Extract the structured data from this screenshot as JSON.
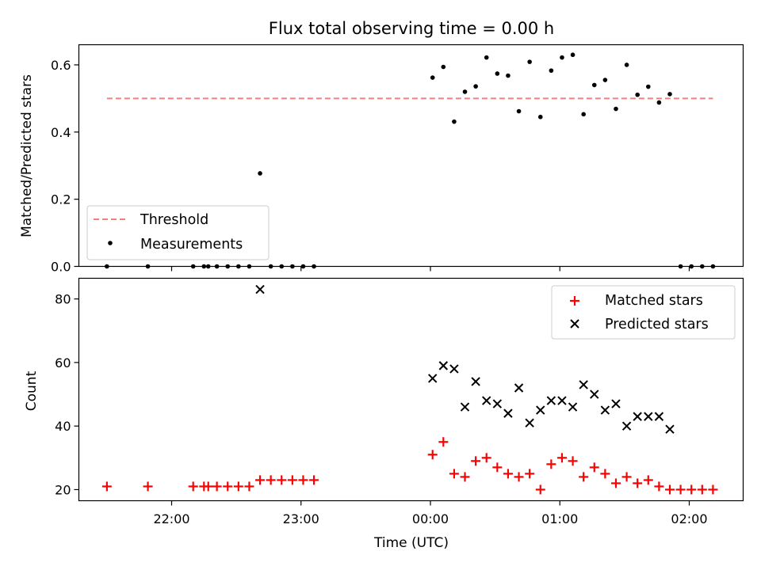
{
  "chart_data": [
    {
      "type": "scatter",
      "title": "Flux total observing time = 0.00 h",
      "xlabel": "",
      "ylabel": "Matched/Predicted stars",
      "ylim": [
        0,
        0.66
      ],
      "yticks": [
        0.0,
        0.2,
        0.4,
        0.6
      ],
      "ytick_labels": [
        "0.0",
        "0.2",
        "0.4",
        "0.6"
      ],
      "legend": {
        "placement": "lower-left",
        "entries": [
          "Threshold",
          "Measurements"
        ]
      },
      "threshold": {
        "name": "Threshold",
        "value": 0.5,
        "x_start": "21:30",
        "x_end": "02:11",
        "color": "#f08080",
        "style": "dashed"
      },
      "series": [
        {
          "name": "Measurements",
          "marker": "dot",
          "color": "#000000",
          "x": [
            "21:30",
            "21:49",
            "22:10",
            "22:15",
            "22:17",
            "22:21",
            "22:26",
            "22:31",
            "22:36",
            "22:41",
            "22:46",
            "22:51",
            "22:56",
            "23:01",
            "23:06",
            "00:01",
            "00:06",
            "00:11",
            "00:16",
            "00:21",
            "00:26",
            "00:31",
            "00:36",
            "00:41",
            "00:46",
            "00:51",
            "00:56",
            "01:01",
            "01:06",
            "01:11",
            "01:16",
            "01:21",
            "01:26",
            "01:31",
            "01:36",
            "01:41",
            "01:46",
            "01:51",
            "01:56",
            "02:01",
            "02:06",
            "02:11"
          ],
          "y": [
            0,
            0,
            0,
            0,
            0,
            0,
            0,
            0,
            0,
            0.277,
            0,
            0,
            0,
            0,
            0,
            0.562,
            0.594,
            0.431,
            0.52,
            0.536,
            0.622,
            0.574,
            0.568,
            0.462,
            0.609,
            0.445,
            0.583,
            0.622,
            0.63,
            0.453,
            0.54,
            0.555,
            0.469,
            0.6,
            0.511,
            0.535,
            0.488,
            0.513,
            0,
            0,
            0,
            0
          ]
        }
      ]
    },
    {
      "type": "scatter",
      "title": "",
      "xlabel": "Time (UTC)",
      "ylabel": "Count",
      "ylim": [
        16.5,
        86.5
      ],
      "yticks": [
        20,
        40,
        60,
        80
      ],
      "ytick_labels": [
        "20",
        "40",
        "60",
        "80"
      ],
      "xlim": [
        "21:17",
        "02:25"
      ],
      "xticks": [
        "22:00",
        "23:00",
        "00:00",
        "01:00",
        "02:00"
      ],
      "legend": {
        "placement": "top-right",
        "entries": [
          "Matched stars",
          "Predicted stars"
        ]
      },
      "series": [
        {
          "name": "Matched stars",
          "marker": "plus",
          "color": "#ff0000",
          "x": [
            "21:30",
            "21:49",
            "22:10",
            "22:15",
            "22:17",
            "22:21",
            "22:26",
            "22:31",
            "22:36",
            "22:41",
            "22:46",
            "22:51",
            "22:56",
            "23:01",
            "23:06",
            "00:01",
            "00:06",
            "00:11",
            "00:16",
            "00:21",
            "00:26",
            "00:31",
            "00:36",
            "00:41",
            "00:46",
            "00:51",
            "00:56",
            "01:01",
            "01:06",
            "01:11",
            "01:16",
            "01:21",
            "01:26",
            "01:31",
            "01:36",
            "01:41",
            "01:46",
            "01:51",
            "01:56",
            "02:01",
            "02:06",
            "02:11"
          ],
          "y": [
            21,
            21,
            21,
            21,
            21,
            21,
            21,
            21,
            21,
            23,
            23,
            23,
            23,
            23,
            23,
            31,
            35,
            25,
            24,
            29,
            30,
            27,
            25,
            24,
            25,
            20,
            28,
            30,
            29,
            24,
            27,
            25,
            22,
            24,
            22,
            23,
            21,
            20,
            20,
            20,
            20,
            20
          ]
        },
        {
          "name": "Predicted stars",
          "marker": "x",
          "color": "#000000",
          "x": [
            "22:41",
            "00:01",
            "00:06",
            "00:11",
            "00:16",
            "00:21",
            "00:26",
            "00:31",
            "00:36",
            "00:41",
            "00:46",
            "00:51",
            "00:56",
            "01:01",
            "01:06",
            "01:11",
            "01:16",
            "01:21",
            "01:26",
            "01:31",
            "01:36",
            "01:41",
            "01:46",
            "01:51"
          ],
          "y": [
            83,
            55,
            59,
            58,
            46,
            54,
            48,
            47,
            44,
            52,
            41,
            45,
            48,
            48,
            46,
            53,
            50,
            45,
            47,
            40,
            43,
            43,
            43,
            39
          ]
        }
      ]
    }
  ]
}
